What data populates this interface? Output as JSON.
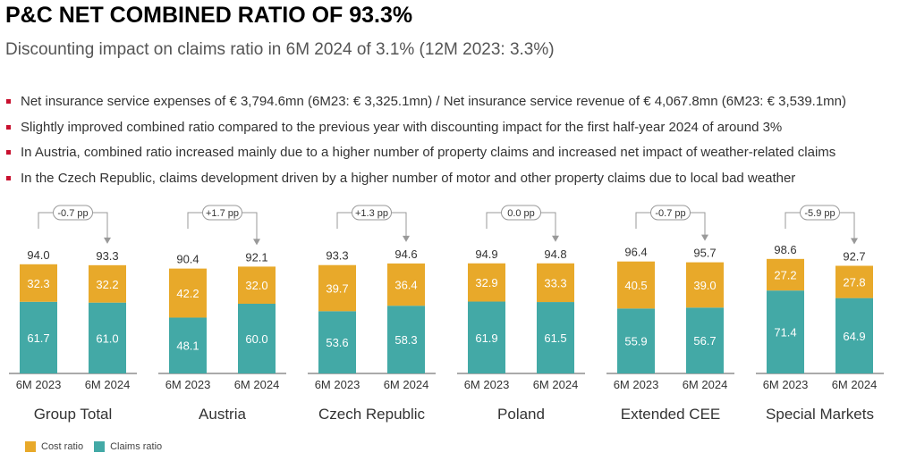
{
  "title": "P&C NET COMBINED RATIO OF 93.3%",
  "subtitle": "Discounting impact on claims ratio in 6M 2024 of 3.1% (12M 2023: 3.3%)",
  "bullets": [
    "Net insurance service expenses of € 3,794.6mn (6M23: € 3,325.1mn) / Net insurance service revenue of € 4,067.8mn (6M23: € 3,539.1mn)",
    "Slightly improved combined ratio compared to the previous year with discounting impact for the first half-year 2024 of around 3%",
    "In Austria, combined ratio increased mainly due to a higher number of property claims and increased net impact of weather-related claims",
    "In the Czech Republic, claims development driven by a higher number of motor and other property claims due to local bad weather"
  ],
  "legend": {
    "cost": "Cost ratio",
    "claims": "Claims ratio"
  },
  "colors": {
    "cost": "#e8a92a",
    "claims": "#43a9a6",
    "bullet": "#c8102e"
  },
  "chart_data": {
    "type": "bar",
    "stacked": true,
    "series_order": [
      "Claims ratio",
      "Cost ratio"
    ],
    "groups": [
      {
        "name": "Group Total",
        "change": "-0.7 pp",
        "periods": [
          "6M 2023",
          "6M 2024"
        ],
        "claims": [
          61.7,
          61.0
        ],
        "cost": [
          32.3,
          32.2
        ],
        "totals": [
          "94.0",
          "93.3"
        ]
      },
      {
        "name": "Austria",
        "change": "+1.7 pp",
        "periods": [
          "6M 2023",
          "6M 2024"
        ],
        "claims": [
          48.1,
          60.0
        ],
        "cost": [
          42.2,
          32.0
        ],
        "totals": [
          "90.4",
          "92.1"
        ]
      },
      {
        "name": "Czech Republic",
        "change": "+1.3 pp",
        "periods": [
          "6M 2023",
          "6M 2024"
        ],
        "claims": [
          53.6,
          58.3
        ],
        "cost": [
          39.7,
          36.4
        ],
        "totals": [
          "93.3",
          "94.6"
        ]
      },
      {
        "name": "Poland",
        "change": "0.0 pp",
        "periods": [
          "6M 2023",
          "6M 2024"
        ],
        "claims": [
          61.9,
          61.5
        ],
        "cost": [
          32.9,
          33.3
        ],
        "totals": [
          "94.9",
          "94.8"
        ]
      },
      {
        "name": "Extended CEE",
        "change": "-0.7 pp",
        "periods": [
          "6M 2023",
          "6M 2024"
        ],
        "claims": [
          55.9,
          56.7
        ],
        "cost": [
          40.5,
          39.0
        ],
        "totals": [
          "96.4",
          "95.7"
        ]
      },
      {
        "name": "Special Markets",
        "change": "-5.9 pp",
        "periods": [
          "6M 2023",
          "6M 2024"
        ],
        "claims": [
          71.4,
          64.9
        ],
        "cost": [
          27.2,
          27.8
        ],
        "totals": [
          "98.6",
          "92.7"
        ]
      }
    ]
  }
}
